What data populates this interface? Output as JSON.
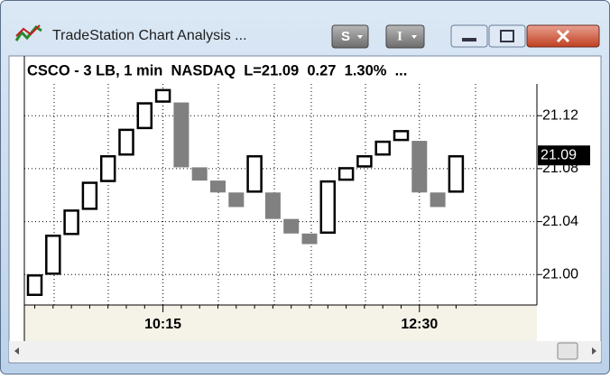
{
  "window": {
    "title": "TradeStation Chart Analysis ...",
    "buttons": [
      "S",
      "I"
    ]
  },
  "chart_data": {
    "type": "three-line-break",
    "header": "CSCO - 3 LB, 1 min  NASDAQ  L=21.09  0.27  1.30%  ...",
    "categories": [
      null,
      null,
      null,
      null,
      null,
      null,
      null,
      "10:15",
      null,
      null,
      null,
      null,
      null,
      null,
      null,
      null,
      null,
      null,
      null,
      null,
      null,
      "12:30",
      null,
      null
    ],
    "open": [
      20.984,
      21.0,
      21.03,
      21.049,
      21.07,
      21.09,
      21.11,
      21.13,
      21.13,
      21.081,
      21.071,
      21.062,
      21.062,
      21.062,
      21.042,
      21.031,
      21.031,
      21.071,
      21.081,
      21.09,
      21.101,
      21.101,
      21.062,
      21.062
    ],
    "close": [
      21.0,
      21.03,
      21.049,
      21.07,
      21.09,
      21.11,
      21.13,
      21.14,
      21.081,
      21.071,
      21.062,
      21.051,
      21.09,
      21.042,
      21.031,
      21.023,
      21.071,
      21.081,
      21.09,
      21.101,
      21.109,
      21.062,
      21.051,
      21.09
    ],
    "up_color": "#000000",
    "down_color": "#808080",
    "last": {
      "value": 21.09,
      "label": "21.09"
    },
    "ylim": [
      20.977,
      21.144
    ],
    "yticks": [
      {
        "value": 21,
        "label": "21.00"
      },
      21.04,
      21.08,
      21.12
    ],
    "grid": true
  }
}
